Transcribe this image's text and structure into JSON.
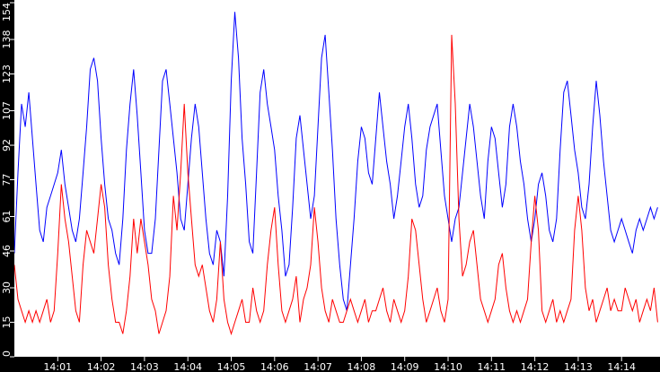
{
  "chart_data": {
    "type": "line",
    "title": "",
    "xlabel": "",
    "ylabel": "",
    "ylim": [
      0,
      154
    ],
    "y_ticks": [
      "0",
      "15",
      "30",
      "46",
      "61",
      "77",
      "92",
      "107",
      "123",
      "138",
      "154"
    ],
    "x_ticks": [
      "14:01",
      "14:02",
      "14:03",
      "14:04",
      "14:05",
      "14:06",
      "14:07",
      "14:08",
      "14:09",
      "14:10",
      "14:11",
      "14:12",
      "14:13",
      "14:14"
    ],
    "x_start": "14:00:00",
    "x_interval_seconds": 5,
    "grid": false,
    "legend": "none",
    "colors": {
      "background": "#ffffff",
      "axis": "#000000",
      "label": "#ffffff"
    },
    "series": [
      {
        "color": "#0000ff",
        "values": [
          45,
          80,
          110,
          100,
          115,
          95,
          75,
          55,
          50,
          65,
          70,
          75,
          80,
          90,
          75,
          65,
          55,
          50,
          60,
          80,
          100,
          125,
          130,
          120,
          95,
          75,
          60,
          55,
          45,
          40,
          60,
          90,
          110,
          125,
          105,
          80,
          55,
          45,
          45,
          60,
          90,
          120,
          125,
          110,
          95,
          80,
          60,
          55,
          75,
          95,
          110,
          100,
          80,
          60,
          45,
          40,
          55,
          50,
          35,
          70,
          120,
          150,
          130,
          95,
          75,
          50,
          45,
          80,
          115,
          125,
          110,
          100,
          90,
          70,
          55,
          35,
          40,
          65,
          95,
          105,
          90,
          75,
          60,
          70,
          100,
          130,
          140,
          115,
          90,
          60,
          40,
          25,
          20,
          40,
          60,
          85,
          100,
          95,
          80,
          75,
          95,
          115,
          100,
          85,
          75,
          60,
          70,
          85,
          100,
          110,
          95,
          75,
          65,
          70,
          90,
          100,
          105,
          110,
          90,
          70,
          60,
          50,
          60,
          65,
          80,
          95,
          110,
          100,
          85,
          70,
          60,
          85,
          100,
          95,
          80,
          65,
          75,
          100,
          110,
          100,
          85,
          75,
          60,
          50,
          60,
          75,
          80,
          70,
          55,
          50,
          60,
          90,
          115,
          120,
          105,
          90,
          80,
          65,
          60,
          75,
          100,
          120,
          105,
          85,
          70,
          55,
          50,
          55,
          60,
          55,
          50,
          45,
          55,
          60,
          55,
          60,
          65,
          60,
          65
        ]
      },
      {
        "color": "#ff0000",
        "values": [
          40,
          25,
          20,
          15,
          20,
          15,
          20,
          15,
          20,
          25,
          15,
          20,
          45,
          75,
          60,
          50,
          35,
          20,
          15,
          40,
          55,
          50,
          45,
          60,
          75,
          65,
          40,
          25,
          15,
          15,
          10,
          20,
          35,
          60,
          45,
          60,
          50,
          40,
          25,
          20,
          10,
          15,
          20,
          35,
          70,
          55,
          80,
          110,
          80,
          60,
          40,
          35,
          40,
          30,
          20,
          15,
          25,
          50,
          25,
          15,
          10,
          15,
          20,
          25,
          15,
          15,
          30,
          20,
          15,
          20,
          40,
          55,
          65,
          40,
          20,
          15,
          20,
          25,
          35,
          15,
          25,
          30,
          40,
          65,
          50,
          30,
          20,
          15,
          25,
          20,
          15,
          15,
          20,
          25,
          20,
          15,
          20,
          25,
          15,
          20,
          20,
          25,
          30,
          20,
          15,
          25,
          20,
          15,
          20,
          35,
          60,
          55,
          40,
          25,
          15,
          20,
          25,
          30,
          20,
          15,
          25,
          140,
          110,
          60,
          35,
          40,
          50,
          55,
          40,
          25,
          20,
          15,
          20,
          25,
          40,
          45,
          30,
          20,
          15,
          20,
          15,
          20,
          25,
          50,
          70,
          55,
          20,
          15,
          20,
          25,
          15,
          20,
          15,
          20,
          25,
          55,
          70,
          55,
          30,
          20,
          25,
          15,
          20,
          25,
          30,
          20,
          25,
          20,
          20,
          30,
          25,
          20,
          25,
          15,
          20,
          25,
          20,
          30,
          15
        ]
      }
    ]
  }
}
